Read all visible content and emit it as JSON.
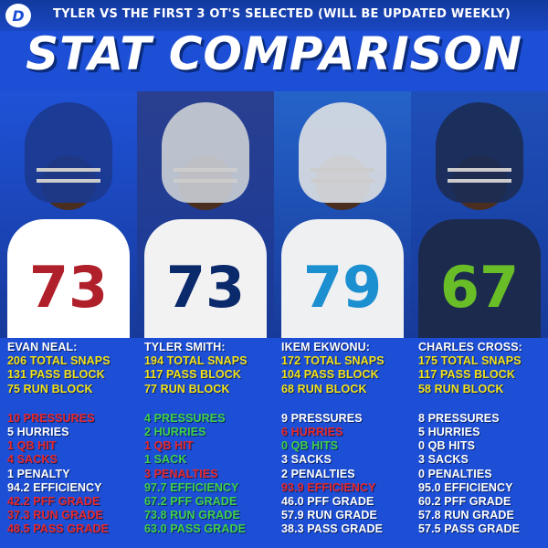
{
  "header": {
    "logo_glyph": "D",
    "subtitle": "TYLER VS THE FIRST 3 OT'S SELECTED (WILL BE UPDATED WEEKLY)",
    "title": "STAT COMPARISON"
  },
  "colors": {
    "background": "#1d4fd6",
    "yellow": "#f2e21a",
    "red": "#e8282b",
    "green": "#41d14a",
    "white": "#ffffff"
  },
  "players": [
    {
      "name": "EVAN NEAL:",
      "jersey_number": "73",
      "team_colors": {
        "helmet": "#1b3a8f",
        "jersey": "#ffffff",
        "number": "#b0202a"
      },
      "summary": [
        {
          "text": "206 TOTAL SNAPS",
          "color": "yellow"
        },
        {
          "text": "131 PASS BLOCK",
          "color": "yellow"
        },
        {
          "text": "75 RUN BLOCK",
          "color": "yellow"
        }
      ],
      "stats": [
        {
          "text": "10 PRESSURES",
          "color": "red"
        },
        {
          "text": "5 HURRIES",
          "color": "white"
        },
        {
          "text": "1 QB HIT",
          "color": "red"
        },
        {
          "text": "4 SACKS",
          "color": "red"
        },
        {
          "text": "1 PENALTY",
          "color": "white"
        },
        {
          "text": "94.2 EFFICIENCY",
          "color": "white"
        },
        {
          "text": "42.2 PFF GRADE",
          "color": "red"
        },
        {
          "text": "37.3 RUN GRADE",
          "color": "red"
        },
        {
          "text": "48.5 PASS GRADE",
          "color": "red"
        }
      ]
    },
    {
      "name": "TYLER SMITH:",
      "jersey_number": "73",
      "team_colors": {
        "helmet": "#c8ccd2",
        "jersey": "#f2f2f2",
        "number": "#0b2a6b"
      },
      "summary": [
        {
          "text": "194 TOTAL SNAPS",
          "color": "yellow"
        },
        {
          "text": "117 PASS BLOCK",
          "color": "yellow"
        },
        {
          "text": "77 RUN BLOCK",
          "color": "yellow"
        }
      ],
      "stats": [
        {
          "text": "4 PRESSURES",
          "color": "green"
        },
        {
          "text": "2 HURRIES",
          "color": "green"
        },
        {
          "text": "1 QB HIT",
          "color": "red"
        },
        {
          "text": "1 SACK",
          "color": "green"
        },
        {
          "text": "3 PENALTIES",
          "color": "red"
        },
        {
          "text": "97.7 EFFICIENCY",
          "color": "green"
        },
        {
          "text": "67.2 PFF GRADE",
          "color": "green"
        },
        {
          "text": "73.8 RUN GRADE",
          "color": "green"
        },
        {
          "text": "63.0 PASS GRADE",
          "color": "green"
        }
      ]
    },
    {
      "name": "IKEM EKWONU:",
      "jersey_number": "79",
      "team_colors": {
        "helmet": "#d9dde2",
        "jersey": "#eef0f2",
        "number": "#1c8fd0"
      },
      "summary": [
        {
          "text": "172 TOTAL SNAPS",
          "color": "yellow"
        },
        {
          "text": "104 PASS BLOCK",
          "color": "yellow"
        },
        {
          "text": "68 RUN BLOCK",
          "color": "yellow"
        }
      ],
      "stats": [
        {
          "text": "9 PRESSURES",
          "color": "white"
        },
        {
          "text": "6 HURRIES",
          "color": "red"
        },
        {
          "text": "0 QB HITS",
          "color": "green"
        },
        {
          "text": "3 SACKS",
          "color": "white"
        },
        {
          "text": "2 PENALTIES",
          "color": "white"
        },
        {
          "text": "93.9 EFFICIENCY",
          "color": "red"
        },
        {
          "text": "46.0 PFF GRADE",
          "color": "white"
        },
        {
          "text": "57.9 RUN GRADE",
          "color": "white"
        },
        {
          "text": "38.3 PASS GRADE",
          "color": "white"
        }
      ]
    },
    {
      "name": "CHARLES CROSS:",
      "jersey_number": "67",
      "team_colors": {
        "helmet": "#1b2d55",
        "jersey": "#1c2a4d",
        "number": "#69be28"
      },
      "summary": [
        {
          "text": "175 TOTAL SNAPS",
          "color": "yellow"
        },
        {
          "text": "117 PASS BLOCK",
          "color": "yellow"
        },
        {
          "text": "58 RUN BLOCK",
          "color": "yellow"
        }
      ],
      "stats": [
        {
          "text": "8 PRESSURES",
          "color": "white"
        },
        {
          "text": "5 HURRIES",
          "color": "white"
        },
        {
          "text": "0 QB HITS",
          "color": "white"
        },
        {
          "text": "3 SACKS",
          "color": "white"
        },
        {
          "text": "0 PENALTIES",
          "color": "white"
        },
        {
          "text": "95.0 EFFICIENCY",
          "color": "white"
        },
        {
          "text": "60.2 PFF GRADE",
          "color": "white"
        },
        {
          "text": "57.8 RUN GRADE",
          "color": "white"
        },
        {
          "text": "57.5 PASS GRADE",
          "color": "white"
        }
      ]
    }
  ]
}
